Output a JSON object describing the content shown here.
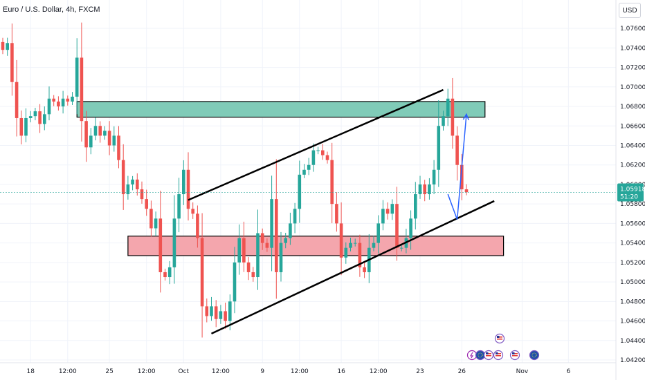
{
  "header": {
    "symbol_line": "Euro / U.S. Dollar, 4h, FXCM"
  },
  "currency_button": "USD",
  "colors": {
    "bull": "#26a69a",
    "bear": "#ef5350",
    "resistance_zone": "#80cbb8",
    "support_zone": "#f4a6ad",
    "trendline": "#000000",
    "projection": "#2962ff",
    "price_tag": "#26a69a"
  },
  "price_tag": {
    "price": "1.05918",
    "countdown": "51:20"
  },
  "event_icons": [
    "lightning-icon",
    "eu-flag-icon",
    "us-flag-icon",
    "us-flag-icon",
    "us-flag-icon",
    "us-flag-icon",
    "eu-flag-icon"
  ],
  "chart_data": {
    "type": "candlestick",
    "title": "Euro / U.S. Dollar, 4h, FXCM",
    "x_ticks": [
      {
        "label": "18",
        "bar": 6
      },
      {
        "label": "12:00",
        "bar": 14
      },
      {
        "label": "25",
        "bar": 23
      },
      {
        "label": "12:00",
        "bar": 31
      },
      {
        "label": "Oct",
        "bar": 39
      },
      {
        "label": "12:00",
        "bar": 47
      },
      {
        "label": "9",
        "bar": 56
      },
      {
        "label": "12:00",
        "bar": 64
      },
      {
        "label": "16",
        "bar": 73
      },
      {
        "label": "12:00",
        "bar": 81
      },
      {
        "label": "23",
        "bar": 90
      },
      {
        "label": "26",
        "bar": 99
      },
      {
        "label": "Nov",
        "bar": 112
      },
      {
        "label": "6",
        "bar": 122
      }
    ],
    "y_ticks": [
      "1.07600",
      "1.07400",
      "1.07200",
      "1.07000",
      "1.06800",
      "1.06600",
      "1.06400",
      "1.06200",
      "1.06000",
      "1.05800",
      "1.05600",
      "1.05400",
      "1.05200",
      "1.05000",
      "1.04800",
      "1.04600",
      "1.04400",
      "1.04200"
    ],
    "ylim": [
      1.042,
      1.077
    ],
    "total_bars": 128,
    "closes": [
      1.0738,
      1.0745,
      1.0705,
      1.0668,
      1.065,
      1.0668,
      1.067,
      1.0675,
      1.0662,
      1.0672,
      1.0688,
      1.0685,
      1.068,
      1.0688,
      1.0685,
      1.069,
      1.073,
      1.0665,
      1.0638,
      1.065,
      1.066,
      1.065,
      1.0655,
      1.064,
      1.065,
      1.0625,
      1.059,
      1.06,
      1.0605,
      1.0595,
      1.0585,
      1.0575,
      1.0555,
      1.0565,
      1.051,
      1.0505,
      1.0515,
      1.0565,
      1.059,
      1.0615,
      1.0575,
      1.057,
      1.0545,
      1.0475,
      1.0465,
      1.0475,
      1.0462,
      1.047,
      1.046,
      1.048,
      1.052,
      1.0545,
      1.052,
      1.051,
      1.0505,
      1.055,
      1.054,
      1.0535,
      1.0585,
      1.051,
      1.054,
      1.0545,
      1.056,
      1.0575,
      1.061,
      1.0615,
      1.062,
      1.0635,
      1.0635,
      1.063,
      1.0625,
      1.058,
      1.056,
      1.0525,
      1.0535,
      1.054,
      1.054,
      1.0515,
      1.051,
      1.0535,
      1.054,
      1.056,
      1.0575,
      1.057,
      1.058,
      1.0535,
      1.0535,
      1.0545,
      1.0565,
      1.059,
      1.06,
      1.059,
      1.06,
      1.0615,
      1.066,
      1.067,
      1.0688,
      1.065,
      1.062,
      1.0595,
      1.0592
    ],
    "annotations": {
      "resistance_zone": {
        "y_top": 1.0685,
        "y_bottom": 1.0669,
        "x_start_bar": 16,
        "x_end_bar": 104
      },
      "support_zone": {
        "y_top": 1.0547,
        "y_bottom": 1.0527,
        "x_start_bar": 27,
        "x_end_bar": 108
      },
      "upper_trendline": {
        "from": {
          "bar": 40,
          "y": 1.0584
        },
        "to": {
          "bar": 95,
          "y": 1.0697
        }
      },
      "lower_trendline": {
        "from": {
          "bar": 45,
          "y": 1.0447
        },
        "to": {
          "bar": 106,
          "y": 1.0583
        }
      },
      "projection_path": [
        {
          "bar": 96,
          "y": 1.059
        },
        {
          "bar": 98,
          "y": 1.0564
        },
        {
          "bar": 100,
          "y": 1.0672
        }
      ]
    },
    "current_price": 1.05918
  }
}
